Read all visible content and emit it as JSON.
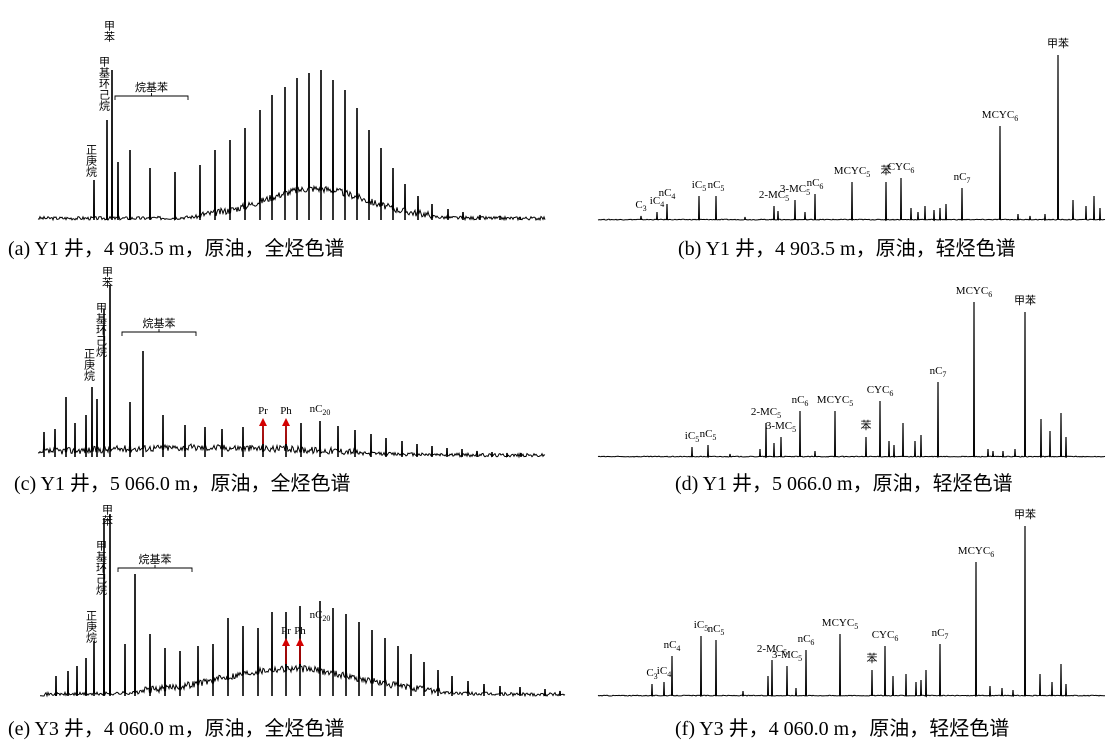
{
  "figure": {
    "panels": [
      {
        "id": "a",
        "caption": "(a) Y1 井，4 903.5 m，原油，全烃色谱",
        "chart_data": {
          "type": "line",
          "kind": "whole-hydrocarbon chromatogram",
          "axes_visible": false,
          "vertical_labels": [
            {
              "text": "甲苯",
              "x": 112
            },
            {
              "text": "甲基环己烷",
              "x": 107
            },
            {
              "text": "正庚烷",
              "x": 94
            }
          ],
          "bracket_label": {
            "text": "烷基苯",
            "from": 115,
            "to": 188
          },
          "markers": [],
          "peaks": [
            {
              "x": 107,
              "h": 100
            },
            {
              "x": 112,
              "h": 150
            },
            {
              "x": 94,
              "h": 40
            },
            {
              "x": 118,
              "h": 58
            },
            {
              "x": 130,
              "h": 70
            },
            {
              "x": 150,
              "h": 52
            },
            {
              "x": 175,
              "h": 48
            },
            {
              "x": 200,
              "h": 55
            },
            {
              "x": 215,
              "h": 70
            },
            {
              "x": 230,
              "h": 80
            },
            {
              "x": 245,
              "h": 92
            },
            {
              "x": 260,
              "h": 110
            },
            {
              "x": 272,
              "h": 125
            },
            {
              "x": 285,
              "h": 133
            },
            {
              "x": 297,
              "h": 142
            },
            {
              "x": 309,
              "h": 147
            },
            {
              "x": 321,
              "h": 150
            },
            {
              "x": 333,
              "h": 140
            },
            {
              "x": 345,
              "h": 130
            },
            {
              "x": 357,
              "h": 112
            },
            {
              "x": 369,
              "h": 90
            },
            {
              "x": 381,
              "h": 72
            },
            {
              "x": 393,
              "h": 52
            },
            {
              "x": 405,
              "h": 36
            },
            {
              "x": 418,
              "h": 24
            },
            {
              "x": 432,
              "h": 16
            },
            {
              "x": 448,
              "h": 11
            },
            {
              "x": 463,
              "h": 8
            },
            {
              "x": 480,
              "h": 5
            },
            {
              "x": 500,
              "h": 4
            },
            {
              "x": 520,
              "h": 3
            }
          ]
        }
      },
      {
        "id": "b",
        "caption": "(b) Y1 井，4 903.5 m，原油，轻烃色谱",
        "chart_data": {
          "type": "line",
          "kind": "light-hydrocarbon chromatogram",
          "axes_visible": false,
          "peaks": [
            {
              "label": "C",
              "sub": "3",
              "x": 641,
              "h": 4
            },
            {
              "label": "iC",
              "sub": "4",
              "x": 657,
              "h": 8
            },
            {
              "label": "nC",
              "sub": "4",
              "x": 667,
              "h": 16
            },
            {
              "label": "iC",
              "sub": "5",
              "x": 699,
              "h": 24
            },
            {
              "label": "nC",
              "sub": "5",
              "x": 716,
              "h": 24
            },
            {
              "label": "2-MC",
              "sub": "5",
              "x": 774,
              "h": 14
            },
            {
              "label": "3-MC",
              "sub": "5",
              "x": 795,
              "h": 20
            },
            {
              "label": "nC",
              "sub": "6",
              "x": 815,
              "h": 26
            },
            {
              "label": "MCYC",
              "sub": "5",
              "x": 852,
              "h": 38
            },
            {
              "label": "苯",
              "sub": "",
              "x": 886,
              "h": 38
            },
            {
              "label": "CYC",
              "sub": "6",
              "x": 901,
              "h": 42
            },
            {
              "label": "nC",
              "sub": "7",
              "x": 962,
              "h": 32
            },
            {
              "label": "MCYC",
              "sub": "6",
              "x": 1000,
              "h": 94
            },
            {
              "label": "甲苯",
              "sub": "",
              "x": 1058,
              "h": 165
            }
          ],
          "minor_peaks": [
            {
              "x": 745,
              "h": 3
            },
            {
              "x": 778,
              "h": 9
            },
            {
              "x": 805,
              "h": 8
            },
            {
              "x": 911,
              "h": 12
            },
            {
              "x": 918,
              "h": 8
            },
            {
              "x": 925,
              "h": 14
            },
            {
              "x": 934,
              "h": 10
            },
            {
              "x": 940,
              "h": 12
            },
            {
              "x": 946,
              "h": 16
            },
            {
              "x": 1018,
              "h": 6
            },
            {
              "x": 1030,
              "h": 4
            },
            {
              "x": 1045,
              "h": 6
            },
            {
              "x": 1073,
              "h": 20
            },
            {
              "x": 1086,
              "h": 14
            },
            {
              "x": 1094,
              "h": 24
            },
            {
              "x": 1100,
              "h": 12
            }
          ]
        }
      },
      {
        "id": "c",
        "caption": "(c) Y1 井，5 066.0 m，原油，全烃色谱",
        "chart_data": {
          "type": "line",
          "kind": "whole-hydrocarbon chromatogram",
          "axes_visible": false,
          "vertical_labels": [
            {
              "text": "甲苯",
              "x": 110
            },
            {
              "text": "甲基环己烷",
              "x": 104
            },
            {
              "text": "正庚烷",
              "x": 92
            }
          ],
          "bracket_label": {
            "text": "烷基苯",
            "from": 122,
            "to": 196
          },
          "markers": [
            {
              "text": "Pr",
              "x": 263
            },
            {
              "text": "Ph",
              "x": 286
            }
          ],
          "peak_labels": [
            {
              "text": "nC",
              "sub": "20",
              "x": 320
            }
          ],
          "peaks": [
            {
              "x": 104,
              "h": 148
            },
            {
              "x": 110,
              "h": 172
            },
            {
              "x": 92,
              "h": 70
            },
            {
              "x": 97,
              "h": 58
            },
            {
              "x": 86,
              "h": 42
            },
            {
              "x": 75,
              "h": 34
            },
            {
              "x": 66,
              "h": 60
            },
            {
              "x": 55,
              "h": 28
            },
            {
              "x": 44,
              "h": 25
            },
            {
              "x": 143,
              "h": 106
            },
            {
              "x": 130,
              "h": 55
            },
            {
              "x": 163,
              "h": 42
            },
            {
              "x": 185,
              "h": 32
            },
            {
              "x": 205,
              "h": 30
            },
            {
              "x": 222,
              "h": 28
            },
            {
              "x": 243,
              "h": 30
            },
            {
              "x": 263,
              "h": 35
            },
            {
              "x": 286,
              "h": 35
            },
            {
              "x": 301,
              "h": 34
            },
            {
              "x": 320,
              "h": 36
            },
            {
              "x": 338,
              "h": 31
            },
            {
              "x": 355,
              "h": 27
            },
            {
              "x": 371,
              "h": 23
            },
            {
              "x": 386,
              "h": 19
            },
            {
              "x": 402,
              "h": 16
            },
            {
              "x": 417,
              "h": 13
            },
            {
              "x": 432,
              "h": 11
            },
            {
              "x": 447,
              "h": 9
            },
            {
              "x": 462,
              "h": 8
            },
            {
              "x": 477,
              "h": 6
            },
            {
              "x": 492,
              "h": 5
            },
            {
              "x": 507,
              "h": 4
            },
            {
              "x": 521,
              "h": 4
            }
          ]
        }
      },
      {
        "id": "d",
        "caption": "(d) Y1 井，5 066.0 m，原油，轻烃色谱",
        "chart_data": {
          "type": "line",
          "kind": "light-hydrocarbon chromatogram",
          "axes_visible": false,
          "peaks": [
            {
              "label": "iC",
              "sub": "5",
              "x": 692,
              "h": 10
            },
            {
              "label": "nC",
              "sub": "5",
              "x": 708,
              "h": 12
            },
            {
              "label": "2-MC",
              "sub": "5",
              "x": 766,
              "h": 34
            },
            {
              "label": "3-MC",
              "sub": "5",
              "x": 781,
              "h": 20
            },
            {
              "label": "nC",
              "sub": "6",
              "x": 800,
              "h": 46
            },
            {
              "label": "MCYC",
              "sub": "5",
              "x": 835,
              "h": 46
            },
            {
              "label": "苯",
              "sub": "",
              "x": 866,
              "h": 20
            },
            {
              "label": "CYC",
              "sub": "6",
              "x": 880,
              "h": 56
            },
            {
              "label": "nC",
              "sub": "7",
              "x": 938,
              "h": 75
            },
            {
              "label": "MCYC",
              "sub": "6",
              "x": 974,
              "h": 155
            },
            {
              "label": "甲苯",
              "sub": "",
              "x": 1025,
              "h": 145
            }
          ],
          "minor_peaks": [
            {
              "x": 730,
              "h": 3
            },
            {
              "x": 760,
              "h": 8
            },
            {
              "x": 774,
              "h": 14
            },
            {
              "x": 815,
              "h": 6
            },
            {
              "x": 889,
              "h": 16
            },
            {
              "x": 894,
              "h": 12
            },
            {
              "x": 903,
              "h": 34
            },
            {
              "x": 915,
              "h": 16
            },
            {
              "x": 921,
              "h": 22
            },
            {
              "x": 988,
              "h": 8
            },
            {
              "x": 993,
              "h": 6
            },
            {
              "x": 1003,
              "h": 6
            },
            {
              "x": 1015,
              "h": 8
            },
            {
              "x": 1041,
              "h": 38
            },
            {
              "x": 1050,
              "h": 26
            },
            {
              "x": 1061,
              "h": 44
            },
            {
              "x": 1066,
              "h": 20
            }
          ]
        }
      },
      {
        "id": "e",
        "caption": "(e) Y3 井，4 060.0 m，原油，全烃色谱",
        "chart_data": {
          "type": "line",
          "kind": "whole-hydrocarbon chromatogram",
          "axes_visible": false,
          "vertical_labels": [
            {
              "text": "甲苯",
              "x": 110
            },
            {
              "text": "甲基环己烷",
              "x": 104
            },
            {
              "text": "正庚烷",
              "x": 94
            }
          ],
          "bracket_label": {
            "text": "烷基苯",
            "from": 118,
            "to": 192
          },
          "markers": [
            {
              "text": "Pr",
              "x": 286
            },
            {
              "text": "Ph",
              "x": 300
            }
          ],
          "peak_labels": [
            {
              "text": "nC",
              "sub": "20",
              "x": 320
            }
          ],
          "peaks": [
            {
              "x": 104,
              "h": 178
            },
            {
              "x": 110,
              "h": 182
            },
            {
              "x": 94,
              "h": 55
            },
            {
              "x": 86,
              "h": 38
            },
            {
              "x": 77,
              "h": 30
            },
            {
              "x": 68,
              "h": 25
            },
            {
              "x": 56,
              "h": 20
            },
            {
              "x": 135,
              "h": 122
            },
            {
              "x": 125,
              "h": 52
            },
            {
              "x": 150,
              "h": 62
            },
            {
              "x": 165,
              "h": 48
            },
            {
              "x": 180,
              "h": 45
            },
            {
              "x": 198,
              "h": 50
            },
            {
              "x": 213,
              "h": 52
            },
            {
              "x": 228,
              "h": 78
            },
            {
              "x": 243,
              "h": 70
            },
            {
              "x": 258,
              "h": 68
            },
            {
              "x": 272,
              "h": 84
            },
            {
              "x": 286,
              "h": 84
            },
            {
              "x": 300,
              "h": 90
            },
            {
              "x": 320,
              "h": 95
            },
            {
              "x": 333,
              "h": 88
            },
            {
              "x": 346,
              "h": 82
            },
            {
              "x": 359,
              "h": 74
            },
            {
              "x": 372,
              "h": 66
            },
            {
              "x": 385,
              "h": 58
            },
            {
              "x": 398,
              "h": 50
            },
            {
              "x": 411,
              "h": 42
            },
            {
              "x": 424,
              "h": 34
            },
            {
              "x": 438,
              "h": 26
            },
            {
              "x": 452,
              "h": 20
            },
            {
              "x": 468,
              "h": 15
            },
            {
              "x": 484,
              "h": 12
            },
            {
              "x": 500,
              "h": 10
            },
            {
              "x": 520,
              "h": 9
            },
            {
              "x": 545,
              "h": 7
            },
            {
              "x": 560,
              "h": 5
            }
          ]
        }
      },
      {
        "id": "f",
        "caption": "(f) Y3 井，4 060.0 m，原油，轻烃色谱",
        "chart_data": {
          "type": "line",
          "kind": "light-hydrocarbon chromatogram",
          "axes_visible": false,
          "peaks": [
            {
              "label": "C",
              "sub": "3",
              "x": 652,
              "h": 12
            },
            {
              "label": "iC",
              "sub": "4",
              "x": 664,
              "h": 14
            },
            {
              "label": "nC",
              "sub": "4",
              "x": 672,
              "h": 40
            },
            {
              "label": "iC",
              "sub": "5",
              "x": 701,
              "h": 60
            },
            {
              "label": "nC",
              "sub": "5",
              "x": 716,
              "h": 56
            },
            {
              "label": "2-MC",
              "sub": "5",
              "x": 772,
              "h": 36
            },
            {
              "label": "3-MC",
              "sub": "5",
              "x": 787,
              "h": 30
            },
            {
              "label": "nC",
              "sub": "6",
              "x": 806,
              "h": 46
            },
            {
              "label": "MCYC",
              "sub": "5",
              "x": 840,
              "h": 62
            },
            {
              "label": "苯",
              "sub": "",
              "x": 872,
              "h": 26
            },
            {
              "label": "CYC",
              "sub": "6",
              "x": 885,
              "h": 50
            },
            {
              "label": "nC",
              "sub": "7",
              "x": 940,
              "h": 52
            },
            {
              "label": "MCYC",
              "sub": "6",
              "x": 976,
              "h": 134
            },
            {
              "label": "甲苯",
              "sub": "",
              "x": 1025,
              "h": 170
            }
          ],
          "minor_peaks": [
            {
              "x": 743,
              "h": 5
            },
            {
              "x": 768,
              "h": 20
            },
            {
              "x": 796,
              "h": 8
            },
            {
              "x": 893,
              "h": 20
            },
            {
              "x": 906,
              "h": 22
            },
            {
              "x": 916,
              "h": 14
            },
            {
              "x": 921,
              "h": 16
            },
            {
              "x": 926,
              "h": 26
            },
            {
              "x": 990,
              "h": 10
            },
            {
              "x": 1002,
              "h": 8
            },
            {
              "x": 1013,
              "h": 6
            },
            {
              "x": 1040,
              "h": 22
            },
            {
              "x": 1052,
              "h": 14
            },
            {
              "x": 1061,
              "h": 32
            },
            {
              "x": 1066,
              "h": 12
            }
          ]
        }
      }
    ]
  }
}
